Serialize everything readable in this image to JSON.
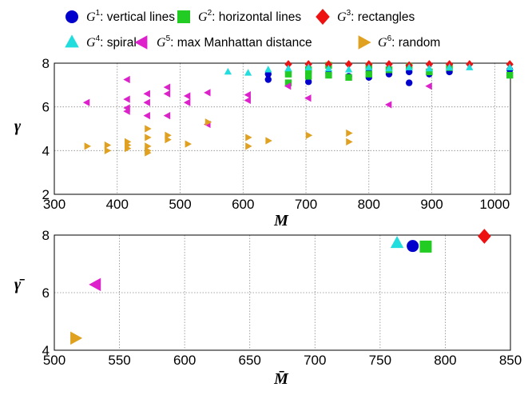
{
  "chart_data": [
    {
      "type": "scatter",
      "xlabel": "M",
      "ylabel": "γ",
      "xlim": [
        300,
        1025
      ],
      "ylim": [
        2,
        8
      ],
      "xticks": [
        300,
        400,
        500,
        600,
        700,
        800,
        900,
        1000
      ],
      "yticks": [
        2,
        4,
        6,
        8
      ],
      "grid": true,
      "legend_position": "top",
      "legend": [
        {
          "key": "G1",
          "base": "G",
          "sup": "1",
          "text": ": vertical lines",
          "marker": "circle",
          "color": "#0000cc"
        },
        {
          "key": "G2",
          "base": "G",
          "sup": "2",
          "text": ": horizontal lines",
          "marker": "square",
          "color": "#22cc22"
        },
        {
          "key": "G3",
          "base": "G",
          "sup": "3",
          "text": ": rectangles",
          "marker": "diamond",
          "color": "#ee1111"
        },
        {
          "key": "G4",
          "base": "G",
          "sup": "4",
          "text": ": spiral",
          "marker": "triangle-up",
          "color": "#22dddd"
        },
        {
          "key": "G5",
          "base": "G",
          "sup": "5",
          "text": ": max Manhattan distance",
          "marker": "triangle-left",
          "color": "#dd22cc"
        },
        {
          "key": "G6",
          "base": "G",
          "sup": "6",
          "text": ": random",
          "marker": "triangle-right",
          "color": "#e0a020"
        }
      ],
      "series": [
        {
          "key": "G1",
          "points": [
            [
              640,
              7.25
            ],
            [
              640,
              7.5
            ],
            [
              672,
              7.6
            ],
            [
              704,
              7.15
            ],
            [
              704,
              7.6
            ],
            [
              736,
              7.55
            ],
            [
              768,
              7.4
            ],
            [
              800,
              7.35
            ],
            [
              800,
              7.6
            ],
            [
              832,
              7.5
            ],
            [
              864,
              7.1
            ],
            [
              864,
              7.6
            ],
            [
              896,
              7.5
            ],
            [
              928,
              7.6
            ],
            [
              1024,
              7.7
            ]
          ]
        },
        {
          "key": "G2",
          "points": [
            [
              672,
              7.1
            ],
            [
              672,
              7.5
            ],
            [
              704,
              7.4
            ],
            [
              704,
              7.7
            ],
            [
              736,
              7.45
            ],
            [
              736,
              7.9
            ],
            [
              768,
              7.35
            ],
            [
              800,
              7.5
            ],
            [
              800,
              7.85
            ],
            [
              832,
              7.7
            ],
            [
              864,
              7.85
            ],
            [
              896,
              7.6
            ],
            [
              928,
              7.8
            ],
            [
              1024,
              7.45
            ]
          ]
        },
        {
          "key": "G3",
          "points": [
            [
              672,
              7.95
            ],
            [
              704,
              7.95
            ],
            [
              736,
              7.95
            ],
            [
              768,
              7.95
            ],
            [
              800,
              7.95
            ],
            [
              832,
              7.95
            ],
            [
              864,
              7.9
            ],
            [
              896,
              7.95
            ],
            [
              928,
              7.95
            ],
            [
              960,
              7.95
            ],
            [
              1024,
              7.95
            ]
          ]
        },
        {
          "key": "G4",
          "points": [
            [
              576,
              7.6
            ],
            [
              608,
              7.55
            ],
            [
              640,
              7.7
            ],
            [
              672,
              7.75
            ],
            [
              704,
              7.8
            ],
            [
              736,
              7.75
            ],
            [
              768,
              7.7
            ],
            [
              800,
              7.8
            ],
            [
              832,
              7.75
            ],
            [
              864,
              7.8
            ],
            [
              896,
              7.75
            ],
            [
              928,
              7.8
            ],
            [
              960,
              7.8
            ],
            [
              1024,
              7.8
            ]
          ]
        },
        {
          "key": "G5",
          "points": [
            [
              352,
              6.2
            ],
            [
              416,
              7.25
            ],
            [
              416,
              6.35
            ],
            [
              416,
              5.95
            ],
            [
              416,
              5.8
            ],
            [
              448,
              6.6
            ],
            [
              448,
              6.2
            ],
            [
              448,
              5.6
            ],
            [
              480,
              6.9
            ],
            [
              480,
              6.6
            ],
            [
              480,
              5.6
            ],
            [
              512,
              6.5
            ],
            [
              512,
              6.2
            ],
            [
              544,
              6.65
            ],
            [
              544,
              5.2
            ],
            [
              608,
              6.55
            ],
            [
              608,
              6.3
            ],
            [
              672,
              6.95
            ],
            [
              704,
              6.4
            ],
            [
              832,
              6.1
            ],
            [
              896,
              6.95
            ]
          ]
        },
        {
          "key": "G6",
          "points": [
            [
              352,
              4.2
            ],
            [
              384,
              4.25
            ],
            [
              384,
              4.0
            ],
            [
              416,
              4.4
            ],
            [
              416,
              4.25
            ],
            [
              416,
              4.1
            ],
            [
              448,
              5.0
            ],
            [
              448,
              4.6
            ],
            [
              448,
              4.2
            ],
            [
              448,
              4.0
            ],
            [
              448,
              3.9
            ],
            [
              480,
              4.7
            ],
            [
              480,
              4.5
            ],
            [
              512,
              4.3
            ],
            [
              544,
              5.3
            ],
            [
              608,
              4.6
            ],
            [
              608,
              4.2
            ],
            [
              640,
              4.45
            ],
            [
              704,
              4.7
            ],
            [
              768,
              4.8
            ],
            [
              768,
              4.4
            ]
          ]
        }
      ]
    },
    {
      "type": "scatter",
      "xlabel": "M̄",
      "ylabel": "γ̄",
      "xlim": [
        500,
        850
      ],
      "ylim": [
        4,
        8
      ],
      "xticks": [
        500,
        550,
        600,
        650,
        700,
        750,
        800,
        850
      ],
      "yticks": [
        4,
        6,
        8
      ],
      "grid": true,
      "series": [
        {
          "key": "G1",
          "points": [
            [
              775,
              7.62
            ]
          ]
        },
        {
          "key": "G2",
          "points": [
            [
              785,
              7.6
            ]
          ]
        },
        {
          "key": "G3",
          "points": [
            [
              830,
              7.96
            ]
          ]
        },
        {
          "key": "G4",
          "points": [
            [
              763,
              7.72
            ]
          ]
        },
        {
          "key": "G5",
          "points": [
            [
              532,
              6.28
            ]
          ]
        },
        {
          "key": "G6",
          "points": [
            [
              516,
              4.42
            ]
          ]
        }
      ]
    }
  ]
}
